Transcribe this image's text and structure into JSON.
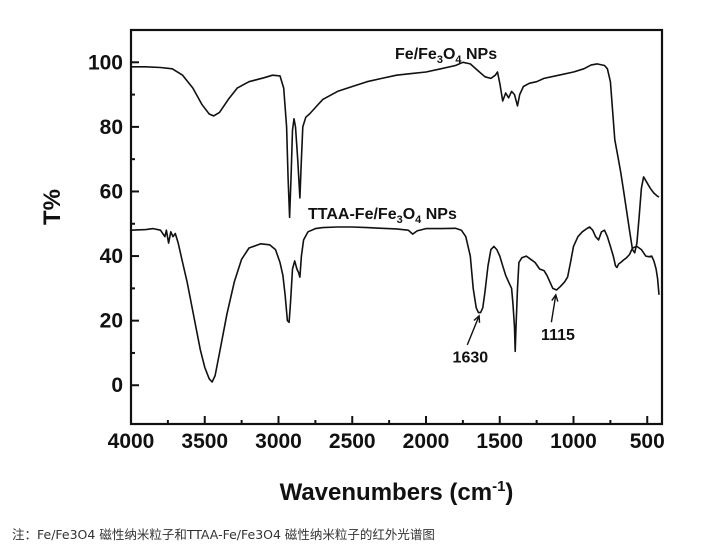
{
  "chart_data": {
    "type": "line",
    "xlabel": "Wavenumbers (cm",
    "xlabel_sup": "-1",
    "xlabel_close": ")",
    "ylabel": "T%",
    "xlim": [
      4000,
      400
    ],
    "ylim": [
      -12,
      110
    ],
    "x_ticks": [
      4000,
      3500,
      3000,
      2500,
      2000,
      1500,
      1000,
      500
    ],
    "y_ticks": [
      0,
      20,
      40,
      60,
      80,
      100
    ],
    "series": [
      {
        "name": "Fe/Fe3O4 NPs",
        "label_parts": [
          "Fe/Fe",
          "3",
          "O",
          "4",
          " NPs"
        ],
        "points": [
          [
            4000,
            98.6
          ],
          [
            3900,
            98.6
          ],
          [
            3800,
            98.4
          ],
          [
            3720,
            98.0
          ],
          [
            3650,
            96.0
          ],
          [
            3580,
            92.0
          ],
          [
            3520,
            87.0
          ],
          [
            3470,
            84.0
          ],
          [
            3440,
            83.4
          ],
          [
            3400,
            84.5
          ],
          [
            3340,
            88.5
          ],
          [
            3280,
            92.0
          ],
          [
            3200,
            94.0
          ],
          [
            3100,
            95.2
          ],
          [
            3040,
            96.0
          ],
          [
            2990,
            95.8
          ],
          [
            2965,
            92.0
          ],
          [
            2945,
            80.0
          ],
          [
            2935,
            64.0
          ],
          [
            2925,
            52.0
          ],
          [
            2915,
            64.0
          ],
          [
            2905,
            79.0
          ],
          [
            2895,
            82.5
          ],
          [
            2885,
            80.0
          ],
          [
            2870,
            70.0
          ],
          [
            2855,
            58.0
          ],
          [
            2845,
            70.0
          ],
          [
            2835,
            80.0
          ],
          [
            2815,
            83.0
          ],
          [
            2790,
            84.0
          ],
          [
            2750,
            86.0
          ],
          [
            2700,
            88.5
          ],
          [
            2600,
            91.0
          ],
          [
            2500,
            92.5
          ],
          [
            2400,
            94.0
          ],
          [
            2300,
            95.0
          ],
          [
            2200,
            96.0
          ],
          [
            2100,
            96.5
          ],
          [
            2000,
            97.0
          ],
          [
            1900,
            98.0
          ],
          [
            1800,
            99.0
          ],
          [
            1750,
            100.0
          ],
          [
            1700,
            99.5
          ],
          [
            1650,
            97.5
          ],
          [
            1600,
            95.5
          ],
          [
            1560,
            95.0
          ],
          [
            1530,
            96.0
          ],
          [
            1515,
            97.0
          ],
          [
            1500,
            93.5
          ],
          [
            1480,
            88.0
          ],
          [
            1460,
            90.5
          ],
          [
            1440,
            89.0
          ],
          [
            1420,
            91.0
          ],
          [
            1400,
            90.0
          ],
          [
            1380,
            86.5
          ],
          [
            1365,
            90.0
          ],
          [
            1340,
            92.5
          ],
          [
            1300,
            93.5
          ],
          [
            1250,
            94.0
          ],
          [
            1200,
            95.0
          ],
          [
            1100,
            96.0
          ],
          [
            1000,
            97.0
          ],
          [
            930,
            98.0
          ],
          [
            880,
            99.2
          ],
          [
            840,
            99.5
          ],
          [
            790,
            99.0
          ],
          [
            770,
            98.0
          ],
          [
            750,
            94.0
          ],
          [
            735,
            85.0
          ],
          [
            720,
            76.0
          ],
          [
            700,
            71.0
          ],
          [
            680,
            66.0
          ],
          [
            660,
            60.0
          ],
          [
            640,
            54.0
          ],
          [
            620,
            48.0
          ],
          [
            600,
            42.0
          ],
          [
            585,
            41.0
          ],
          [
            570,
            44.0
          ],
          [
            555,
            52.0
          ],
          [
            540,
            61.0
          ],
          [
            525,
            64.5
          ],
          [
            505,
            63.0
          ],
          [
            480,
            61.0
          ],
          [
            455,
            59.5
          ],
          [
            430,
            58.5
          ],
          [
            420,
            58.3
          ]
        ]
      },
      {
        "name": "TTAA-Fe/Fe3O4 NPs",
        "label_parts": [
          "TTAA-Fe/Fe",
          "3",
          "O",
          "4",
          " NPs"
        ],
        "points": [
          [
            4000,
            48.0
          ],
          [
            3900,
            48.2
          ],
          [
            3850,
            48.5
          ],
          [
            3800,
            48.0
          ],
          [
            3770,
            46.0
          ],
          [
            3760,
            48.0
          ],
          [
            3745,
            44.0
          ],
          [
            3730,
            47.5
          ],
          [
            3715,
            46.0
          ],
          [
            3700,
            47.0
          ],
          [
            3680,
            44.0
          ],
          [
            3650,
            38.0
          ],
          [
            3620,
            32.0
          ],
          [
            3590,
            25.0
          ],
          [
            3560,
            18.0
          ],
          [
            3530,
            11.0
          ],
          [
            3500,
            5.5
          ],
          [
            3470,
            2.0
          ],
          [
            3450,
            1.0
          ],
          [
            3430,
            3.0
          ],
          [
            3400,
            10.0
          ],
          [
            3350,
            22.0
          ],
          [
            3300,
            32.0
          ],
          [
            3250,
            39.0
          ],
          [
            3200,
            42.5
          ],
          [
            3120,
            43.8
          ],
          [
            3060,
            43.5
          ],
          [
            3020,
            42.0
          ],
          [
            2990,
            38.0
          ],
          [
            2970,
            34.0
          ],
          [
            2955,
            28.0
          ],
          [
            2940,
            20.0
          ],
          [
            2928,
            19.5
          ],
          [
            2918,
            26.0
          ],
          [
            2905,
            36.0
          ],
          [
            2890,
            38.5
          ],
          [
            2875,
            36.0
          ],
          [
            2865,
            35.0
          ],
          [
            2855,
            33.5
          ],
          [
            2845,
            40.0
          ],
          [
            2830,
            45.0
          ],
          [
            2800,
            47.5
          ],
          [
            2750,
            48.5
          ],
          [
            2700,
            48.8
          ],
          [
            2600,
            49.0
          ],
          [
            2500,
            49.0
          ],
          [
            2400,
            48.8
          ],
          [
            2300,
            48.6
          ],
          [
            2200,
            48.4
          ],
          [
            2120,
            48.0
          ],
          [
            2090,
            46.8
          ],
          [
            2060,
            47.8
          ],
          [
            2000,
            48.5
          ],
          [
            1900,
            48.5
          ],
          [
            1800,
            48.6
          ],
          [
            1760,
            48.0
          ],
          [
            1730,
            46.0
          ],
          [
            1700,
            40.0
          ],
          [
            1680,
            30.0
          ],
          [
            1660,
            24.0
          ],
          [
            1645,
            22.5
          ],
          [
            1630,
            22.5
          ],
          [
            1615,
            24.0
          ],
          [
            1600,
            29.0
          ],
          [
            1580,
            37.0
          ],
          [
            1560,
            42.0
          ],
          [
            1540,
            43.0
          ],
          [
            1520,
            42.0
          ],
          [
            1500,
            40.0
          ],
          [
            1480,
            37.0
          ],
          [
            1460,
            34.0
          ],
          [
            1440,
            32.0
          ],
          [
            1420,
            30.0
          ],
          [
            1410,
            25.0
          ],
          [
            1400,
            18.0
          ],
          [
            1395,
            10.5
          ],
          [
            1390,
            18.0
          ],
          [
            1380,
            30.0
          ],
          [
            1370,
            38.0
          ],
          [
            1350,
            39.5
          ],
          [
            1320,
            40.0
          ],
          [
            1290,
            39.0
          ],
          [
            1260,
            38.0
          ],
          [
            1230,
            36.0
          ],
          [
            1200,
            35.5
          ],
          [
            1180,
            34.0
          ],
          [
            1160,
            32.0
          ],
          [
            1140,
            30.0
          ],
          [
            1115,
            29.5
          ],
          [
            1090,
            30.5
          ],
          [
            1060,
            32.0
          ],
          [
            1040,
            33.5
          ],
          [
            1020,
            38.0
          ],
          [
            1000,
            43.0
          ],
          [
            970,
            46.0
          ],
          [
            940,
            47.5
          ],
          [
            910,
            48.5
          ],
          [
            890,
            49.0
          ],
          [
            870,
            48.0
          ],
          [
            850,
            46.0
          ],
          [
            830,
            45.0
          ],
          [
            810,
            47.5
          ],
          [
            790,
            48.0
          ],
          [
            770,
            46.0
          ],
          [
            750,
            43.0
          ],
          [
            730,
            40.0
          ],
          [
            715,
            37.0
          ],
          [
            705,
            36.5
          ],
          [
            695,
            37.5
          ],
          [
            680,
            38.0
          ],
          [
            660,
            38.8
          ],
          [
            640,
            39.5
          ],
          [
            620,
            40.5
          ],
          [
            600,
            42.5
          ],
          [
            570,
            43.0
          ],
          [
            540,
            42.0
          ],
          [
            510,
            40.0
          ],
          [
            490,
            39.8
          ],
          [
            470,
            40.0
          ],
          [
            455,
            38.5
          ],
          [
            440,
            36.0
          ],
          [
            430,
            33.0
          ],
          [
            420,
            28.0
          ]
        ]
      }
    ],
    "annotations": [
      {
        "text": "1630",
        "x": 1630,
        "y": 22.5
      },
      {
        "text": "1115",
        "x": 1115,
        "y": 29.5
      }
    ]
  },
  "caption": "注：Fe/Fe3O4 磁性纳米粒子和TTAA-Fe/Fe3O4 磁性纳米粒子的红外光谱图"
}
